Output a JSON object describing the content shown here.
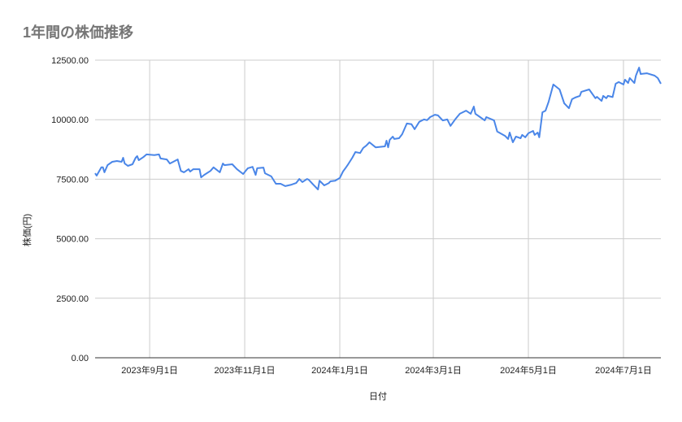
{
  "chart_data": {
    "type": "line",
    "title": "1年間の株価推移",
    "xlabel": "日付",
    "ylabel": "株価(円)",
    "ylim": [
      0,
      12500
    ],
    "xlim": [
      "2023-07-28",
      "2024-07-25"
    ],
    "grid": true,
    "legend": "none",
    "line_color": "#4a86e8",
    "y_ticks": [
      {
        "value": 0,
        "label": "0.00"
      },
      {
        "value": 2500,
        "label": "2500.00"
      },
      {
        "value": 5000,
        "label": "5000.00"
      },
      {
        "value": 7500,
        "label": "7500.00"
      },
      {
        "value": 10000,
        "label": "10000.00"
      },
      {
        "value": 12500,
        "label": "12500.00"
      }
    ],
    "x_ticks": [
      {
        "date": "2023-09-01",
        "label": "2023年9月1日"
      },
      {
        "date": "2023-11-01",
        "label": "2023年11月1日"
      },
      {
        "date": "2024-01-01",
        "label": "2024年1月1日"
      },
      {
        "date": "2024-03-01",
        "label": "2024年3月1日"
      },
      {
        "date": "2024-05-01",
        "label": "2024年5月1日"
      },
      {
        "date": "2024-07-01",
        "label": "2024年7月1日"
      }
    ],
    "points": [
      [
        "2023-07-28",
        7750
      ],
      [
        "2023-07-29",
        7650
      ],
      [
        "2023-08-01",
        8000
      ],
      [
        "2023-08-02",
        8000
      ],
      [
        "2023-08-03",
        7790
      ],
      [
        "2023-08-05",
        8090
      ],
      [
        "2023-08-08",
        8230
      ],
      [
        "2023-08-11",
        8265
      ],
      [
        "2023-08-14",
        8230
      ],
      [
        "2023-08-15",
        8400
      ],
      [
        "2023-08-16",
        8160
      ],
      [
        "2023-08-18",
        8060
      ],
      [
        "2023-08-21",
        8130
      ],
      [
        "2023-08-23",
        8400
      ],
      [
        "2023-08-24",
        8470
      ],
      [
        "2023-08-25",
        8300
      ],
      [
        "2023-08-28",
        8430
      ],
      [
        "2023-08-30",
        8540
      ],
      [
        "2023-09-04",
        8510
      ],
      [
        "2023-09-07",
        8540
      ],
      [
        "2023-09-08",
        8370
      ],
      [
        "2023-09-12",
        8330
      ],
      [
        "2023-09-14",
        8160
      ],
      [
        "2023-09-19",
        8330
      ],
      [
        "2023-09-21",
        7850
      ],
      [
        "2023-09-23",
        7790
      ],
      [
        "2023-09-26",
        7920
      ],
      [
        "2023-09-27",
        7820
      ],
      [
        "2023-09-29",
        7920
      ],
      [
        "2023-10-03",
        7920
      ],
      [
        "2023-10-04",
        7580
      ],
      [
        "2023-10-06",
        7680
      ],
      [
        "2023-10-10",
        7850
      ],
      [
        "2023-10-12",
        8000
      ],
      [
        "2023-10-16",
        7790
      ],
      [
        "2023-10-18",
        8160
      ],
      [
        "2023-10-19",
        8090
      ],
      [
        "2023-10-24",
        8130
      ],
      [
        "2023-10-27",
        7920
      ],
      [
        "2023-10-31",
        7720
      ],
      [
        "2023-11-03",
        7960
      ],
      [
        "2023-11-06",
        8020
      ],
      [
        "2023-11-08",
        7680
      ],
      [
        "2023-11-09",
        7960
      ],
      [
        "2023-11-13",
        7990
      ],
      [
        "2023-11-14",
        7750
      ],
      [
        "2023-11-18",
        7620
      ],
      [
        "2023-11-21",
        7310
      ],
      [
        "2023-11-24",
        7310
      ],
      [
        "2023-11-27",
        7210
      ],
      [
        "2023-12-01",
        7270
      ],
      [
        "2023-12-04",
        7340
      ],
      [
        "2023-12-06",
        7510
      ],
      [
        "2023-12-08",
        7380
      ],
      [
        "2023-12-11",
        7510
      ],
      [
        "2023-12-12",
        7480
      ],
      [
        "2023-12-15",
        7270
      ],
      [
        "2023-12-18",
        7070
      ],
      [
        "2023-12-19",
        7440
      ],
      [
        "2023-12-22",
        7240
      ],
      [
        "2023-12-25",
        7340
      ],
      [
        "2023-12-26",
        7410
      ],
      [
        "2023-12-29",
        7440
      ],
      [
        "2024-01-01",
        7550
      ],
      [
        "2024-01-03",
        7820
      ],
      [
        "2024-01-05",
        8000
      ],
      [
        "2024-01-06",
        8090
      ],
      [
        "2024-01-09",
        8400
      ],
      [
        "2024-01-11",
        8640
      ],
      [
        "2024-01-14",
        8600
      ],
      [
        "2024-01-16",
        8810
      ],
      [
        "2024-01-18",
        8910
      ],
      [
        "2024-01-20",
        9050
      ],
      [
        "2024-01-24",
        8840
      ],
      [
        "2024-01-30",
        8880
      ],
      [
        "2024-01-31",
        9120
      ],
      [
        "2024-02-01",
        8840
      ],
      [
        "2024-02-02",
        9150
      ],
      [
        "2024-02-04",
        9290
      ],
      [
        "2024-02-05",
        9190
      ],
      [
        "2024-02-08",
        9220
      ],
      [
        "2024-02-10",
        9390
      ],
      [
        "2024-02-13",
        9840
      ],
      [
        "2024-02-16",
        9810
      ],
      [
        "2024-02-18",
        9600
      ],
      [
        "2024-02-21",
        9910
      ],
      [
        "2024-02-24",
        10010
      ],
      [
        "2024-02-26",
        9980
      ],
      [
        "2024-02-28",
        10110
      ],
      [
        "2024-03-02",
        10210
      ],
      [
        "2024-03-04",
        10180
      ],
      [
        "2024-03-07",
        9970
      ],
      [
        "2024-03-10",
        10010
      ],
      [
        "2024-03-12",
        9740
      ],
      [
        "2024-03-15",
        10010
      ],
      [
        "2024-03-18",
        10250
      ],
      [
        "2024-03-22",
        10380
      ],
      [
        "2024-03-25",
        10250
      ],
      [
        "2024-03-27",
        10550
      ],
      [
        "2024-03-28",
        10250
      ],
      [
        "2024-03-31",
        10110
      ],
      [
        "2024-04-03",
        9970
      ],
      [
        "2024-04-04",
        10110
      ],
      [
        "2024-04-09",
        9970
      ],
      [
        "2024-04-11",
        9500
      ],
      [
        "2024-04-16",
        9320
      ],
      [
        "2024-04-18",
        9190
      ],
      [
        "2024-04-19",
        9460
      ],
      [
        "2024-04-21",
        9050
      ],
      [
        "2024-04-23",
        9290
      ],
      [
        "2024-04-26",
        9220
      ],
      [
        "2024-04-27",
        9360
      ],
      [
        "2024-04-29",
        9260
      ],
      [
        "2024-05-01",
        9430
      ],
      [
        "2024-05-04",
        9530
      ],
      [
        "2024-05-05",
        9360
      ],
      [
        "2024-05-07",
        9460
      ],
      [
        "2024-05-08",
        9260
      ],
      [
        "2024-05-10",
        10310
      ],
      [
        "2024-05-12",
        10380
      ],
      [
        "2024-05-14",
        10760
      ],
      [
        "2024-05-17",
        11480
      ],
      [
        "2024-05-21",
        11270
      ],
      [
        "2024-05-24",
        10690
      ],
      [
        "2024-05-27",
        10480
      ],
      [
        "2024-05-29",
        10860
      ],
      [
        "2024-05-31",
        10930
      ],
      [
        "2024-06-03",
        11000
      ],
      [
        "2024-06-04",
        11170
      ],
      [
        "2024-06-09",
        11270
      ],
      [
        "2024-06-13",
        10900
      ],
      [
        "2024-06-14",
        10960
      ],
      [
        "2024-06-17",
        10790
      ],
      [
        "2024-06-18",
        11000
      ],
      [
        "2024-06-20",
        10900
      ],
      [
        "2024-06-21",
        11000
      ],
      [
        "2024-06-24",
        10950
      ],
      [
        "2024-06-26",
        11510
      ],
      [
        "2024-06-28",
        11580
      ],
      [
        "2024-07-01",
        11480
      ],
      [
        "2024-07-02",
        11680
      ],
      [
        "2024-07-04",
        11540
      ],
      [
        "2024-07-05",
        11750
      ],
      [
        "2024-07-08",
        11540
      ],
      [
        "2024-07-09",
        11850
      ],
      [
        "2024-07-11",
        12190
      ],
      [
        "2024-07-12",
        11920
      ],
      [
        "2024-07-16",
        11950
      ],
      [
        "2024-07-21",
        11850
      ],
      [
        "2024-07-23",
        11750
      ],
      [
        "2024-07-25",
        11510
      ]
    ]
  }
}
